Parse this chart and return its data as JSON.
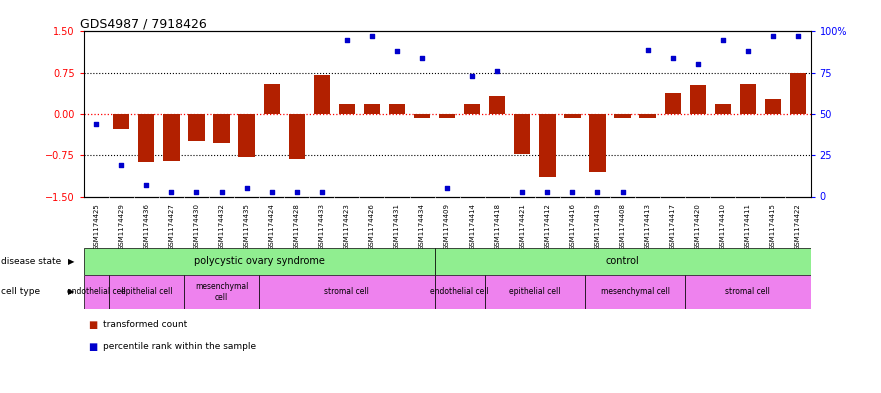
{
  "title": "GDS4987 / 7918426",
  "samples": [
    "GSM1174425",
    "GSM1174429",
    "GSM1174436",
    "GSM1174427",
    "GSM1174430",
    "GSM1174432",
    "GSM1174435",
    "GSM1174424",
    "GSM1174428",
    "GSM1174433",
    "GSM1174423",
    "GSM1174426",
    "GSM1174431",
    "GSM1174434",
    "GSM1174409",
    "GSM1174414",
    "GSM1174418",
    "GSM1174421",
    "GSM1174412",
    "GSM1174416",
    "GSM1174419",
    "GSM1174408",
    "GSM1174413",
    "GSM1174417",
    "GSM1174420",
    "GSM1174410",
    "GSM1174411",
    "GSM1174415",
    "GSM1174422"
  ],
  "bar_values": [
    0.0,
    -0.28,
    -0.88,
    -0.85,
    -0.5,
    -0.52,
    -0.78,
    0.55,
    -0.82,
    0.7,
    0.18,
    0.18,
    0.18,
    -0.07,
    -0.07,
    0.18,
    0.32,
    -0.72,
    -1.15,
    -0.07,
    -1.05,
    -0.07,
    -0.07,
    0.38,
    0.52,
    0.18,
    0.55,
    0.28,
    0.75
  ],
  "percentile_values_pct": [
    44,
    19,
    7,
    3,
    3,
    3,
    5,
    3,
    3,
    3,
    95,
    97,
    88,
    84,
    5,
    73,
    76,
    3,
    3,
    3,
    3,
    3,
    89,
    84,
    80,
    95,
    88,
    97,
    97
  ],
  "disease_state_groups": [
    {
      "label": "polycystic ovary syndrome",
      "start": 0,
      "end": 13
    },
    {
      "label": "control",
      "start": 14,
      "end": 28
    }
  ],
  "cell_type_groups": [
    {
      "label": "endothelial cell",
      "start": 0,
      "end": 0
    },
    {
      "label": "epithelial cell",
      "start": 1,
      "end": 3
    },
    {
      "label": "mesenchymal\ncell",
      "start": 4,
      "end": 6
    },
    {
      "label": "stromal cell",
      "start": 7,
      "end": 13
    },
    {
      "label": "endothelial cell",
      "start": 14,
      "end": 15
    },
    {
      "label": "epithelial cell",
      "start": 16,
      "end": 19
    },
    {
      "label": "mesenchymal cell",
      "start": 20,
      "end": 23
    },
    {
      "label": "stromal cell",
      "start": 24,
      "end": 28
    }
  ],
  "bar_color": "#b22000",
  "dot_color": "#0000cc",
  "ylim_left": [
    -1.5,
    1.5
  ],
  "ylim_right": [
    0,
    100
  ],
  "yticks_left": [
    -1.5,
    -0.75,
    0.0,
    0.75,
    1.5
  ],
  "yticks_right": [
    0,
    25,
    50,
    75,
    100
  ],
  "disease_state_color": "#90ee90",
  "cell_type_color": "#ee82ee",
  "xticklabel_bg": "#d8d8d8",
  "legend_red_label": "transformed count",
  "legend_blue_label": "percentile rank within the sample"
}
